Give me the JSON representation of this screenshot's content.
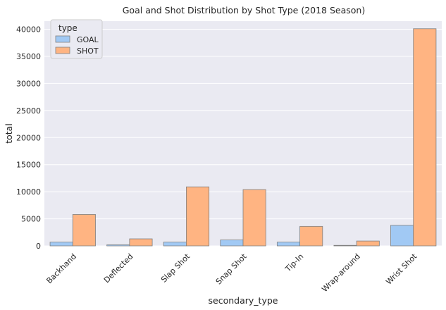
{
  "chart_data": {
    "type": "bar",
    "title": "Goal and Shot Distribution by Shot Type (2018 Season)",
    "xlabel": "secondary_type",
    "ylabel": "total",
    "ylim": [
      0,
      41500
    ],
    "yticks": [
      0,
      5000,
      10000,
      15000,
      20000,
      25000,
      30000,
      35000,
      40000
    ],
    "grid": true,
    "categories": [
      "Backhand",
      "Deflected",
      "Slap Shot",
      "Snap Shot",
      "Tip-In",
      "Wrap-around",
      "Wrist Shot"
    ],
    "legend": {
      "title": "type",
      "placement": "top-left"
    },
    "series": [
      {
        "name": "GOAL",
        "color": "#a1c9f4",
        "values": [
          700,
          200,
          700,
          1100,
          700,
          100,
          3800
        ]
      },
      {
        "name": "SHOT",
        "color": "#ffb482",
        "values": [
          5800,
          1300,
          10900,
          10400,
          3600,
          900,
          40100
        ]
      }
    ]
  }
}
